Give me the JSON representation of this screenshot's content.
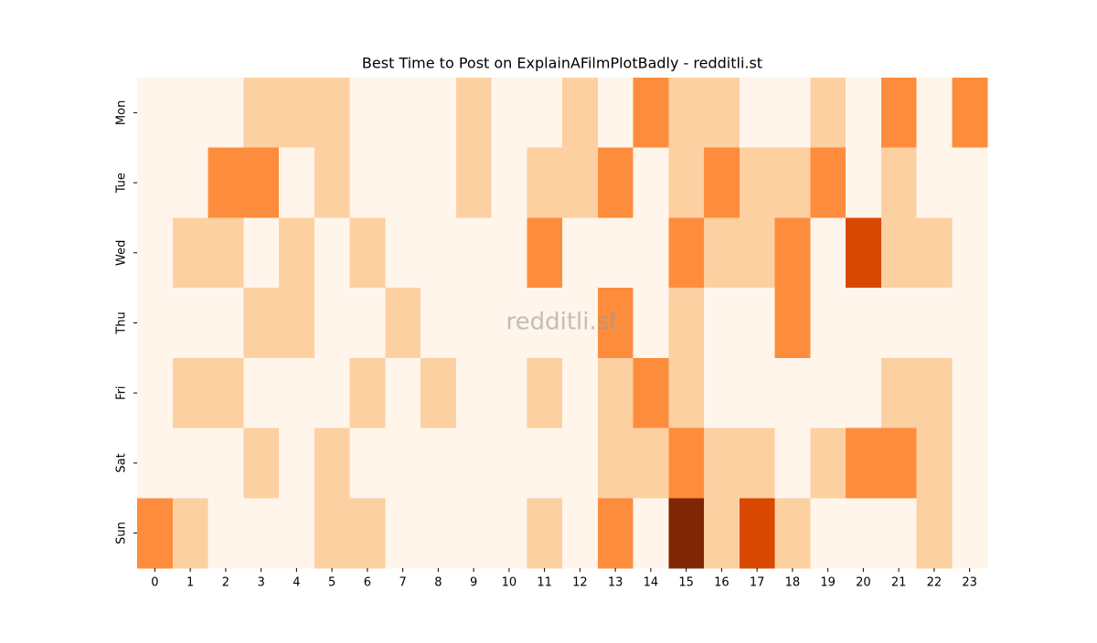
{
  "chart_data": {
    "type": "heatmap",
    "title": "Best Time to Post on ExplainAFilmPlotBadly - redditli.st",
    "watermark": "redditli.st",
    "x": [
      "0",
      "1",
      "2",
      "3",
      "4",
      "5",
      "6",
      "7",
      "8",
      "9",
      "10",
      "11",
      "12",
      "13",
      "14",
      "15",
      "16",
      "17",
      "18",
      "19",
      "20",
      "21",
      "22",
      "23"
    ],
    "y": [
      "Mon",
      "Tue",
      "Wed",
      "Thu",
      "Fri",
      "Sat",
      "Sun"
    ],
    "values": [
      [
        0,
        0,
        0,
        1,
        1,
        1,
        0,
        0,
        0,
        1,
        0,
        0,
        1,
        0,
        2,
        1,
        1,
        0,
        0,
        1,
        0,
        2,
        0,
        2
      ],
      [
        0,
        0,
        2,
        2,
        0,
        1,
        0,
        0,
        0,
        1,
        0,
        1,
        1,
        2,
        0,
        1,
        2,
        1,
        1,
        2,
        0,
        1,
        0,
        0
      ],
      [
        0,
        1,
        1,
        0,
        1,
        0,
        1,
        0,
        0,
        0,
        0,
        2,
        0,
        0,
        0,
        2,
        1,
        1,
        2,
        0,
        3,
        1,
        1,
        0
      ],
      [
        0,
        0,
        0,
        1,
        1,
        0,
        0,
        1,
        0,
        0,
        0,
        0,
        0,
        2,
        0,
        1,
        0,
        0,
        2,
        0,
        0,
        0,
        0,
        0
      ],
      [
        0,
        1,
        1,
        0,
        0,
        0,
        1,
        0,
        1,
        0,
        0,
        1,
        0,
        1,
        2,
        1,
        0,
        0,
        0,
        0,
        0,
        1,
        1,
        0
      ],
      [
        0,
        0,
        0,
        1,
        0,
        1,
        0,
        0,
        0,
        0,
        0,
        0,
        0,
        1,
        1,
        2,
        1,
        1,
        0,
        1,
        2,
        2,
        1,
        0
      ],
      [
        2,
        1,
        0,
        0,
        0,
        1,
        1,
        0,
        0,
        0,
        0,
        1,
        0,
        2,
        0,
        4,
        1,
        3,
        1,
        0,
        0,
        0,
        1,
        0
      ]
    ],
    "colors": [
      "#fff5eb",
      "#fdd0a2",
      "#fd8d3c",
      "#d94801",
      "#7f2704"
    ]
  }
}
